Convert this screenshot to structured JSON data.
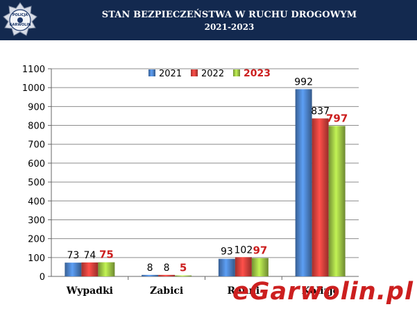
{
  "header": {
    "title": "STAN BEZPIECZEŃSTWA  W RUCHU DROGOWYM",
    "subtitle": "2021-2023",
    "badge_top_text": "POLICJA",
    "badge_bottom_text": "GARWOLIN",
    "background_color": "#13294f"
  },
  "watermark": {
    "text": "eGarwolin.pl",
    "color": "#cc1f1f"
  },
  "chart_data": {
    "type": "bar",
    "categories": [
      "Wypadki",
      "Zabici",
      "Ranni",
      "Kolizje"
    ],
    "series": [
      {
        "name": "2021",
        "values": [
          73,
          8,
          93,
          992
        ],
        "color": "#4a7fc4"
      },
      {
        "name": "2022",
        "values": [
          74,
          8,
          102,
          837
        ],
        "color": "#d8403b"
      },
      {
        "name": "2023",
        "values": [
          75,
          5,
          97,
          797
        ],
        "color": "#9bc244",
        "highlight_color": "#cc1f1f"
      }
    ],
    "yticks": [
      0,
      100,
      200,
      300,
      400,
      500,
      600,
      700,
      800,
      900,
      1000,
      1100
    ],
    "ylim": [
      0,
      1100
    ],
    "grid": true,
    "legend_position": "top-center"
  }
}
